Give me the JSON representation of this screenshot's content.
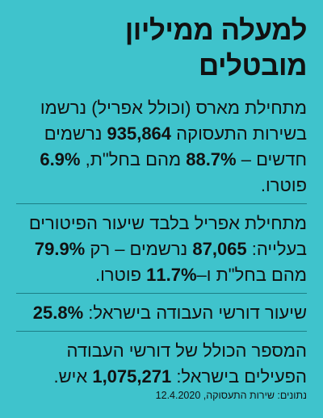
{
  "title": "למעלה ממיליון מובטלים",
  "sections": [
    {
      "p1": "מתחילת מארס (וכולל אפריל) נרשמו בשירות התעסוקה ",
      "b1": "935,864",
      "p2": " נרשמים חדשים – ",
      "b2": "88.7%",
      "p3": " מהם בחל\"ת, ",
      "b3": "6.9%",
      "p4": " פוטרו."
    },
    {
      "p1": "מתחילת אפריל בלבד שיעור הפיטורים בעלייה: ",
      "b1": "87,065",
      "p2": " נרשמים – רק ",
      "b2": "79.9%",
      "p3": " מהם בחל\"ת ו–",
      "b3": "11.7%",
      "p4": " פוטרו."
    },
    {
      "p1": "שיעור דורשי העבודה בישראל: ",
      "b1": "25.8%",
      "p2": ""
    },
    {
      "p1": "המספר הכולל של דורשי העבודה הפעילים בישראל: ",
      "b1": "1,075,271",
      "p2": " איש."
    }
  ],
  "source": "נתונים: שירות התעסוקה, 12.4.2020"
}
